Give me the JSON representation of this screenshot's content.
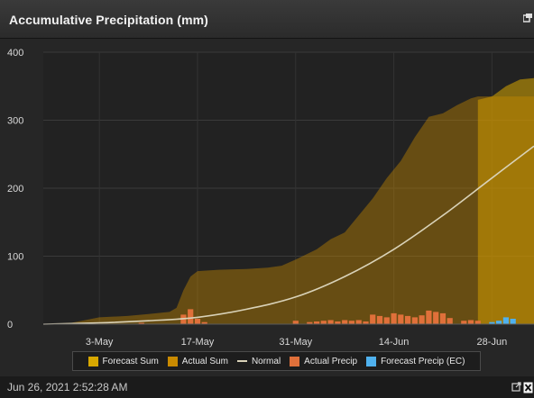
{
  "header": {
    "title": "Accumulative Precipitation (mm)",
    "popout_icon": "popout-icon"
  },
  "footer": {
    "timestamp": "Jun 26, 2021 2:52:28 AM",
    "icons": [
      "external-link-icon",
      "excel-export-icon"
    ]
  },
  "colors": {
    "forecast_sum": "#d8a800",
    "actual_sum": "#c98a00",
    "normal": "#d9d2b8",
    "actual_precip": "#e0703a",
    "forecast_precip": "#4fb1ee"
  },
  "chart_data": {
    "type": "area",
    "title": "Accumulative Precipitation (mm)",
    "x_axis": {
      "type": "date",
      "range": [
        "2021-04-25",
        "2021-07-04"
      ],
      "tick_labels": [
        "3-May",
        "17-May",
        "31-May",
        "14-Jun",
        "28-Jun"
      ],
      "tick_dates": [
        "2021-05-03",
        "2021-05-17",
        "2021-05-31",
        "2021-06-14",
        "2021-06-28"
      ]
    },
    "y_axis": {
      "range": [
        0,
        400
      ],
      "ticks": [
        0,
        100,
        200,
        300,
        400
      ]
    },
    "grid": true,
    "legend_position": "bottom",
    "legend": [
      "Forecast Sum",
      "Actual Sum",
      "Normal",
      "Actual Precip",
      "Forecast Precip (EC)"
    ],
    "series": [
      {
        "name": "Forecast Sum",
        "kind": "area",
        "points": [
          [
            "2021-06-26",
            330
          ],
          [
            "2021-06-28",
            335
          ],
          [
            "2021-06-30",
            350
          ],
          [
            "2021-07-02",
            360
          ],
          [
            "2021-07-04",
            362
          ]
        ]
      },
      {
        "name": "Actual Sum",
        "kind": "area",
        "points": [
          [
            "2021-04-25",
            0
          ],
          [
            "2021-04-29",
            2
          ],
          [
            "2021-05-01",
            6
          ],
          [
            "2021-05-03",
            10
          ],
          [
            "2021-05-07",
            12
          ],
          [
            "2021-05-10",
            15
          ],
          [
            "2021-05-13",
            18
          ],
          [
            "2021-05-14",
            24
          ],
          [
            "2021-05-15",
            50
          ],
          [
            "2021-05-16",
            70
          ],
          [
            "2021-05-17",
            78
          ],
          [
            "2021-05-20",
            80
          ],
          [
            "2021-05-24",
            81
          ],
          [
            "2021-05-27",
            83
          ],
          [
            "2021-05-29",
            86
          ],
          [
            "2021-05-31",
            95
          ],
          [
            "2021-06-03",
            110
          ],
          [
            "2021-06-05",
            125
          ],
          [
            "2021-06-07",
            135
          ],
          [
            "2021-06-09",
            160
          ],
          [
            "2021-06-11",
            185
          ],
          [
            "2021-06-13",
            215
          ],
          [
            "2021-06-15",
            240
          ],
          [
            "2021-06-17",
            275
          ],
          [
            "2021-06-19",
            305
          ],
          [
            "2021-06-21",
            310
          ],
          [
            "2021-06-23",
            322
          ],
          [
            "2021-06-25",
            332
          ],
          [
            "2021-06-26",
            335
          ],
          [
            "2021-07-04",
            335
          ]
        ]
      },
      {
        "name": "Normal",
        "kind": "line",
        "points": [
          [
            "2021-04-25",
            0
          ],
          [
            "2021-05-03",
            2
          ],
          [
            "2021-05-10",
            5
          ],
          [
            "2021-05-17",
            10
          ],
          [
            "2021-05-24",
            22
          ],
          [
            "2021-05-31",
            40
          ],
          [
            "2021-06-07",
            70
          ],
          [
            "2021-06-14",
            110
          ],
          [
            "2021-06-21",
            160
          ],
          [
            "2021-06-28",
            215
          ],
          [
            "2021-07-04",
            262
          ]
        ]
      },
      {
        "name": "Actual Precip",
        "kind": "bar",
        "points": [
          [
            "2021-05-02",
            1
          ],
          [
            "2021-05-09",
            2
          ],
          [
            "2021-05-15",
            14
          ],
          [
            "2021-05-16",
            22
          ],
          [
            "2021-05-17",
            8
          ],
          [
            "2021-05-18",
            3
          ],
          [
            "2021-05-31",
            5
          ],
          [
            "2021-06-02",
            3
          ],
          [
            "2021-06-03",
            4
          ],
          [
            "2021-06-04",
            5
          ],
          [
            "2021-06-05",
            6
          ],
          [
            "2021-06-06",
            4
          ],
          [
            "2021-06-07",
            6
          ],
          [
            "2021-06-08",
            5
          ],
          [
            "2021-06-09",
            6
          ],
          [
            "2021-06-10",
            4
          ],
          [
            "2021-06-11",
            14
          ],
          [
            "2021-06-12",
            12
          ],
          [
            "2021-06-13",
            10
          ],
          [
            "2021-06-14",
            16
          ],
          [
            "2021-06-15",
            14
          ],
          [
            "2021-06-16",
            12
          ],
          [
            "2021-06-17",
            10
          ],
          [
            "2021-06-18",
            13
          ],
          [
            "2021-06-19",
            20
          ],
          [
            "2021-06-20",
            18
          ],
          [
            "2021-06-21",
            16
          ],
          [
            "2021-06-22",
            9
          ],
          [
            "2021-06-24",
            5
          ],
          [
            "2021-06-25",
            6
          ],
          [
            "2021-06-26",
            5
          ]
        ]
      },
      {
        "name": "Forecast Precip (EC)",
        "kind": "bar",
        "points": [
          [
            "2021-06-28",
            3
          ],
          [
            "2021-06-29",
            5
          ],
          [
            "2021-06-30",
            10
          ],
          [
            "2021-07-01",
            8
          ]
        ]
      }
    ]
  }
}
